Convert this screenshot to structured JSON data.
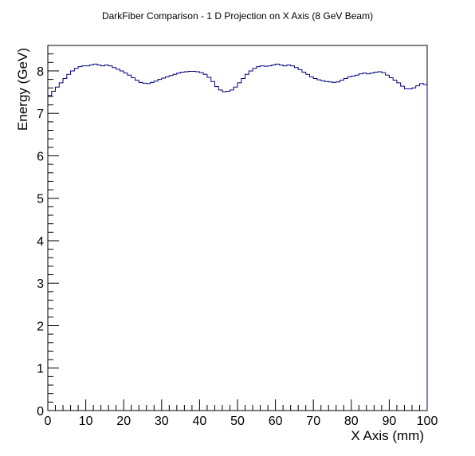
{
  "chart_data": {
    "type": "line",
    "title": "DarkFiber Comparison - 1 D Projection on X Axis (8 GeV Beam)",
    "xlabel": "X Axis (mm)",
    "ylabel": "Energy (GeV)",
    "xlim": [
      0,
      100
    ],
    "ylim": [
      0,
      8.6
    ],
    "xticks": [
      "0",
      "10",
      "20",
      "30",
      "40",
      "50",
      "60",
      "70",
      "80",
      "90",
      "100"
    ],
    "yticks": [
      "0",
      "1",
      "2",
      "3",
      "4",
      "5",
      "6",
      "7",
      "8"
    ],
    "grid": false,
    "legend": "none",
    "line_color": "#000080",
    "series": [
      {
        "bin_width": 1,
        "x": [
          0,
          1,
          2,
          3,
          4,
          5,
          6,
          7,
          8,
          9,
          10,
          11,
          12,
          13,
          14,
          15,
          16,
          17,
          18,
          19,
          20,
          21,
          22,
          23,
          24,
          25,
          26,
          27,
          28,
          29,
          30,
          31,
          32,
          33,
          34,
          35,
          36,
          37,
          38,
          39,
          40,
          41,
          42,
          43,
          44,
          45,
          46,
          47,
          48,
          49,
          50,
          51,
          52,
          53,
          54,
          55,
          56,
          57,
          58,
          59,
          60,
          61,
          62,
          63,
          64,
          65,
          66,
          67,
          68,
          69,
          70,
          71,
          72,
          73,
          74,
          75,
          76,
          77,
          78,
          79,
          80,
          81,
          82,
          83,
          84,
          85,
          86,
          87,
          88,
          89,
          90,
          91,
          92,
          93,
          94,
          95,
          96,
          97,
          98,
          99
        ],
        "values": [
          7.42,
          7.52,
          7.62,
          7.72,
          7.82,
          7.92,
          8.0,
          8.06,
          8.1,
          8.12,
          8.12,
          8.14,
          8.16,
          8.14,
          8.12,
          8.14,
          8.12,
          8.08,
          8.04,
          8.0,
          7.95,
          7.9,
          7.84,
          7.78,
          7.73,
          7.71,
          7.7,
          7.73,
          7.76,
          7.8,
          7.83,
          7.86,
          7.89,
          7.92,
          7.95,
          7.97,
          7.98,
          7.99,
          7.99,
          7.98,
          7.96,
          7.92,
          7.85,
          7.75,
          7.63,
          7.55,
          7.51,
          7.52,
          7.55,
          7.62,
          7.72,
          7.82,
          7.92,
          8.0,
          8.06,
          8.1,
          8.12,
          8.11,
          8.12,
          8.14,
          8.16,
          8.14,
          8.12,
          8.14,
          8.12,
          8.08,
          8.03,
          7.97,
          7.92,
          7.86,
          7.82,
          7.79,
          7.77,
          7.75,
          7.74,
          7.73,
          7.74,
          7.78,
          7.82,
          7.86,
          7.88,
          7.9,
          7.93,
          7.95,
          7.93,
          7.95,
          7.97,
          7.98,
          7.96,
          7.9,
          7.84,
          7.78,
          7.72,
          7.64,
          7.58,
          7.58,
          7.6,
          7.65,
          7.7,
          7.68
        ]
      }
    ]
  }
}
